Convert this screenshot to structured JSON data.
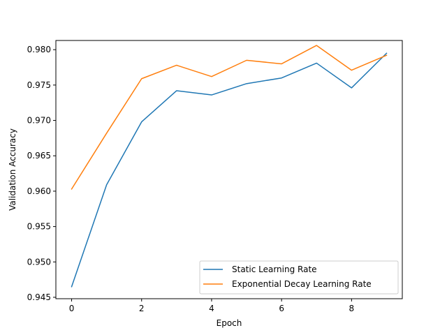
{
  "chart_data": {
    "type": "line",
    "title": "",
    "xlabel": "Epoch",
    "ylabel": "Validation Accuracy",
    "x": [
      0,
      1,
      2,
      3,
      4,
      5,
      6,
      7,
      8,
      9
    ],
    "xlim": [
      -0.45,
      9.45
    ],
    "ylim": [
      0.9448,
      0.9813
    ],
    "xticks": [
      0,
      2,
      4,
      6,
      8
    ],
    "xtick_labels": [
      "0",
      "2",
      "4",
      "6",
      "8"
    ],
    "yticks": [
      0.945,
      0.95,
      0.955,
      0.96,
      0.965,
      0.97,
      0.975,
      0.98
    ],
    "ytick_labels": [
      "0.945",
      "0.950",
      "0.955",
      "0.960",
      "0.965",
      "0.970",
      "0.975",
      "0.980"
    ],
    "grid": false,
    "legend_position": "lower-right",
    "series": [
      {
        "name": "Static Learning Rate",
        "color": "#1f77b4",
        "values": [
          0.9465,
          0.9609,
          0.9698,
          0.9742,
          0.9736,
          0.9752,
          0.976,
          0.9781,
          0.9746,
          0.9795
        ]
      },
      {
        "name": "Exponential Decay Learning Rate",
        "color": "#ff7f0e",
        "values": [
          0.9603,
          0.9682,
          0.9759,
          0.9778,
          0.9762,
          0.9785,
          0.978,
          0.9806,
          0.9771,
          0.9792
        ]
      }
    ]
  }
}
